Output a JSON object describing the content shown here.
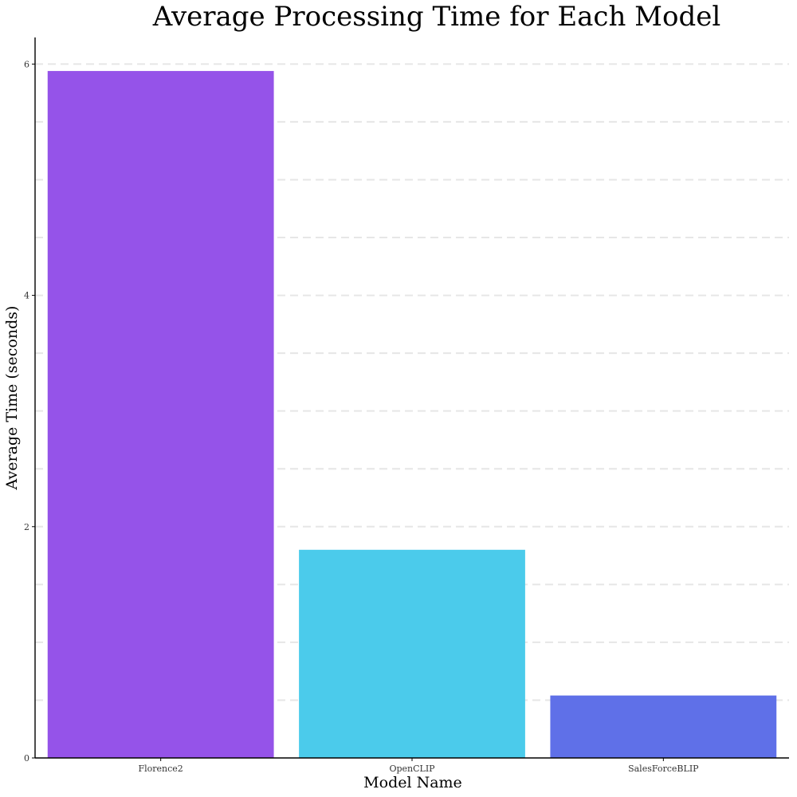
{
  "chart_data": {
    "type": "bar",
    "title": "Average Processing Time for Each Model",
    "xlabel": "Model Name",
    "ylabel": "Average Time (seconds)",
    "categories": [
      "Florence2",
      "OpenCLIP",
      "SalesForceBLIP"
    ],
    "values": [
      5.94,
      1.8,
      0.54
    ],
    "colors": [
      "#9553e9",
      "#4bcbeb",
      "#5f70e8"
    ],
    "ylim": [
      0,
      6.23
    ],
    "yticks": [
      0,
      2,
      4,
      6
    ],
    "ytick_labels": [
      "0",
      "2",
      "4",
      "6"
    ],
    "grid": "horizontal dashed at every 0.5",
    "legend": "none"
  }
}
